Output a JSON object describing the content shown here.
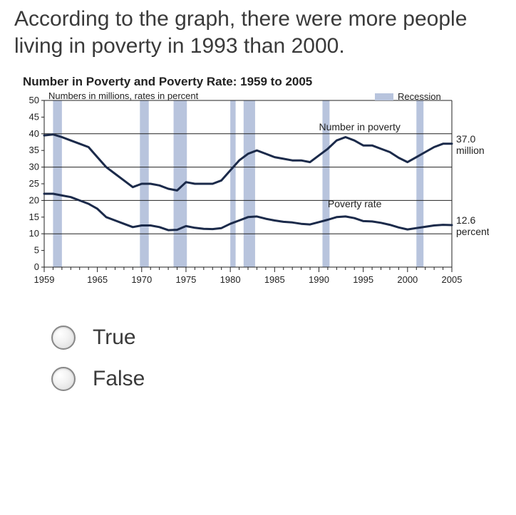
{
  "question": "According to the graph, there were more people living in poverty in 1993 than 2000.",
  "chart": {
    "title": "Number in Poverty and Poverty Rate: 1959 to 2005",
    "subtitle": "Numbers in millions, rates in percent",
    "legend_label": "Recession",
    "legend_swatch_color": "#b8c4dd",
    "background_color": "#ffffff",
    "axis_color": "#222222",
    "grid_color": "#222222",
    "line_color": "#1b2a4a",
    "line_width": 3,
    "x": {
      "min": 1959,
      "max": 2005,
      "ticks": [
        1959,
        1965,
        1970,
        1975,
        1980,
        1985,
        1990,
        1995,
        2000,
        2005
      ],
      "label_fontsize": 13
    },
    "y": {
      "min": 0,
      "max": 50,
      "ticks": [
        0,
        5,
        10,
        15,
        20,
        25,
        30,
        35,
        40,
        45,
        50
      ],
      "label_fontsize": 13
    },
    "recession_bands": [
      [
        1960,
        1961
      ],
      [
        1969.8,
        1970.8
      ],
      [
        1973.6,
        1975.1
      ],
      [
        1980,
        1980.6
      ],
      [
        1981.5,
        1982.8
      ],
      [
        1990.4,
        1991.2
      ],
      [
        2001,
        2001.8
      ]
    ],
    "series_number": {
      "label": "Number in poverty",
      "end_value_label": "37.0",
      "end_unit_label": "million",
      "points": [
        [
          1959,
          39.5
        ],
        [
          1960,
          39.8
        ],
        [
          1961,
          39
        ],
        [
          1962,
          38
        ],
        [
          1963,
          37
        ],
        [
          1964,
          36
        ],
        [
          1965,
          33
        ],
        [
          1966,
          30
        ],
        [
          1967,
          28
        ],
        [
          1968,
          26
        ],
        [
          1969,
          24
        ],
        [
          1970,
          25
        ],
        [
          1971,
          25
        ],
        [
          1972,
          24.5
        ],
        [
          1973,
          23.5
        ],
        [
          1974,
          23
        ],
        [
          1975,
          25.5
        ],
        [
          1976,
          25
        ],
        [
          1977,
          25
        ],
        [
          1978,
          25
        ],
        [
          1979,
          26
        ],
        [
          1980,
          29
        ],
        [
          1981,
          32
        ],
        [
          1982,
          34
        ],
        [
          1983,
          35
        ],
        [
          1984,
          34
        ],
        [
          1985,
          33
        ],
        [
          1986,
          32.5
        ],
        [
          1987,
          32
        ],
        [
          1988,
          32
        ],
        [
          1989,
          31.5
        ],
        [
          1990,
          33.5
        ],
        [
          1991,
          35.5
        ],
        [
          1992,
          38
        ],
        [
          1993,
          39
        ],
        [
          1994,
          38
        ],
        [
          1995,
          36.5
        ],
        [
          1996,
          36.5
        ],
        [
          1997,
          35.5
        ],
        [
          1998,
          34.5
        ],
        [
          1999,
          32.8
        ],
        [
          2000,
          31.5
        ],
        [
          2001,
          33
        ],
        [
          2002,
          34.5
        ],
        [
          2003,
          36
        ],
        [
          2004,
          37
        ],
        [
          2005,
          37
        ]
      ]
    },
    "series_rate": {
      "label": "Poverty rate",
      "end_value_label": "12.6",
      "end_unit_label": "percent",
      "points": [
        [
          1959,
          22
        ],
        [
          1960,
          22
        ],
        [
          1961,
          21.5
        ],
        [
          1962,
          21
        ],
        [
          1963,
          20
        ],
        [
          1964,
          19
        ],
        [
          1965,
          17.5
        ],
        [
          1966,
          15
        ],
        [
          1967,
          14
        ],
        [
          1968,
          13
        ],
        [
          1969,
          12
        ],
        [
          1970,
          12.5
        ],
        [
          1971,
          12.5
        ],
        [
          1972,
          12
        ],
        [
          1973,
          11.1
        ],
        [
          1974,
          11.2
        ],
        [
          1975,
          12.3
        ],
        [
          1976,
          11.8
        ],
        [
          1977,
          11.5
        ],
        [
          1978,
          11.4
        ],
        [
          1979,
          11.7
        ],
        [
          1980,
          13
        ],
        [
          1981,
          14
        ],
        [
          1982,
          15
        ],
        [
          1983,
          15.2
        ],
        [
          1984,
          14.5
        ],
        [
          1985,
          14
        ],
        [
          1986,
          13.6
        ],
        [
          1987,
          13.4
        ],
        [
          1988,
          13
        ],
        [
          1989,
          12.8
        ],
        [
          1990,
          13.5
        ],
        [
          1991,
          14.2
        ],
        [
          1992,
          15
        ],
        [
          1993,
          15.2
        ],
        [
          1994,
          14.7
        ],
        [
          1995,
          13.8
        ],
        [
          1996,
          13.7
        ],
        [
          1997,
          13.3
        ],
        [
          1998,
          12.7
        ],
        [
          1999,
          11.9
        ],
        [
          2000,
          11.3
        ],
        [
          2001,
          11.7
        ],
        [
          2002,
          12.1
        ],
        [
          2003,
          12.5
        ],
        [
          2004,
          12.7
        ],
        [
          2005,
          12.6
        ]
      ]
    }
  },
  "options": {
    "true_label": "True",
    "false_label": "False"
  }
}
